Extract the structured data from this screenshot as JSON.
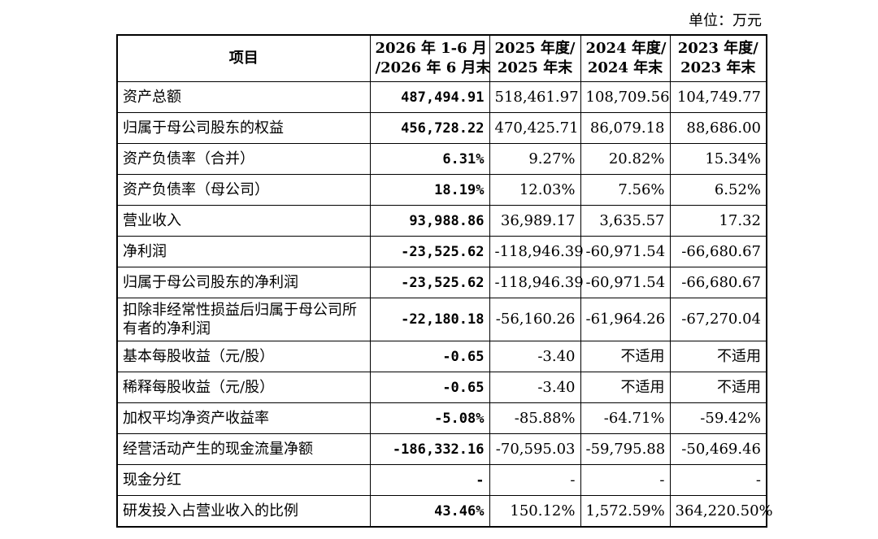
{
  "unit_label": "单位：万元",
  "header": {
    "item": "项目",
    "cols": [
      {
        "line1": "2026 年 1-6 月",
        "line2": "/2026 年 6 月末"
      },
      {
        "line1": "2025 年度/",
        "line2": "2025 年末"
      },
      {
        "line1": "2024 年度/",
        "line2": "2024 年末"
      },
      {
        "line1": "2023 年度/",
        "line2": "2023 年末"
      }
    ]
  },
  "rows": [
    {
      "label": "资产总额",
      "values": [
        "487,494.91",
        "518,461.97",
        "108,709.56",
        "104,749.77"
      ]
    },
    {
      "label": "归属于母公司股东的权益",
      "values": [
        "456,728.22",
        "470,425.71",
        "86,079.18",
        "88,686.00"
      ]
    },
    {
      "label": "资产负债率（合并）",
      "values": [
        "6.31%",
        "9.27%",
        "20.82%",
        "15.34%"
      ]
    },
    {
      "label": "资产负债率（母公司）",
      "values": [
        "18.19%",
        "12.03%",
        "7.56%",
        "6.52%"
      ]
    },
    {
      "label": "营业收入",
      "values": [
        "93,988.86",
        "36,989.17",
        "3,635.57",
        "17.32"
      ]
    },
    {
      "label": "净利润",
      "values": [
        "-23,525.62",
        "-118,946.39",
        "-60,971.54",
        "-66,680.67"
      ]
    },
    {
      "label": "归属于母公司股东的净利润",
      "values": [
        "-23,525.62",
        "-118,946.39",
        "-60,971.54",
        "-66,680.67"
      ]
    },
    {
      "label": "扣除非经常性损益后归属于母公司所有者的净利润",
      "values": [
        "-22,180.18",
        "-56,160.26",
        "-61,964.26",
        "-67,270.04"
      ]
    },
    {
      "label": "基本每股收益（元/股）",
      "values": [
        "-0.65",
        "-3.40",
        "不适用",
        "不适用"
      ]
    },
    {
      "label": "稀释每股收益（元/股）",
      "values": [
        "-0.65",
        "-3.40",
        "不适用",
        "不适用"
      ]
    },
    {
      "label": "加权平均净资产收益率",
      "values": [
        "-5.08%",
        "-85.88%",
        "-64.71%",
        "-59.42%"
      ]
    },
    {
      "label": "经营活动产生的现金流量净额",
      "values": [
        "-186,332.16",
        "-70,595.03",
        "-59,795.88",
        "-50,469.46"
      ]
    },
    {
      "label": "现金分红",
      "values": [
        "-",
        "-",
        "-",
        "-"
      ]
    },
    {
      "label": "研发投入占营业收入的比例",
      "values": [
        "43.46%",
        "150.12%",
        "1,572.59%",
        "364,220.50%"
      ]
    }
  ]
}
